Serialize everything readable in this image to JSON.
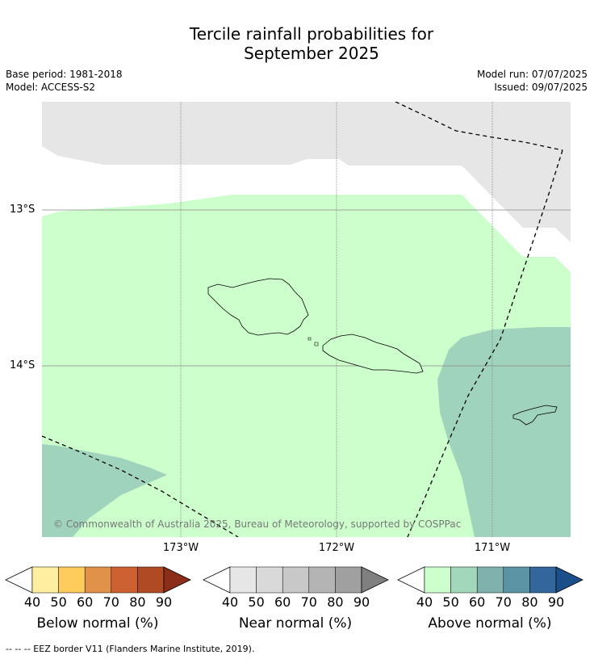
{
  "title": {
    "line1": "Tercile rainfall probabilities for",
    "line2": "September 2025"
  },
  "meta": {
    "base_period": "Base period: 1981-2018",
    "model": "Model: ACCESS-S2",
    "model_run": "Model run: 07/07/2025",
    "issued": "Issued: 09/07/2025"
  },
  "map": {
    "lat_labels": [
      "13°S",
      "14°S"
    ],
    "lon_labels": [
      "173°W",
      "172°W",
      "171°W"
    ],
    "copyright": "© Commonwealth of Australia 2025, Bureau of Meteorology, supported by COSPPac",
    "colors": {
      "near_normal_40_50": "#e6e6e6",
      "above_normal_40_50": "#ccffcc",
      "above_normal_50_60": "#9fd3bc",
      "eez_line": "#000000"
    }
  },
  "colorbars": [
    {
      "title": "Below normal (%)",
      "ticks": [
        "40",
        "50",
        "60",
        "70",
        "80",
        "90"
      ],
      "colors": [
        "#ffeda0",
        "#fecc5c",
        "#e0924a",
        "#cc6030",
        "#b04a25",
        "#8c2d1a"
      ]
    },
    {
      "title": "Near normal (%)",
      "ticks": [
        "40",
        "50",
        "60",
        "70",
        "80",
        "90"
      ],
      "colors": [
        "#e6e6e6",
        "#d9d9d9",
        "#c8c8c8",
        "#b4b4b4",
        "#a0a0a0",
        "#808080"
      ]
    },
    {
      "title": "Above normal (%)",
      "ticks": [
        "40",
        "50",
        "60",
        "70",
        "80",
        "90"
      ],
      "colors": [
        "#ccffcc",
        "#a3d7bb",
        "#7fb2ad",
        "#5b93a3",
        "#33669a",
        "#1a4f8a"
      ]
    }
  ],
  "footnote": "--  --  -- EEZ border V11 (Flanders Marine Institute, 2019)."
}
